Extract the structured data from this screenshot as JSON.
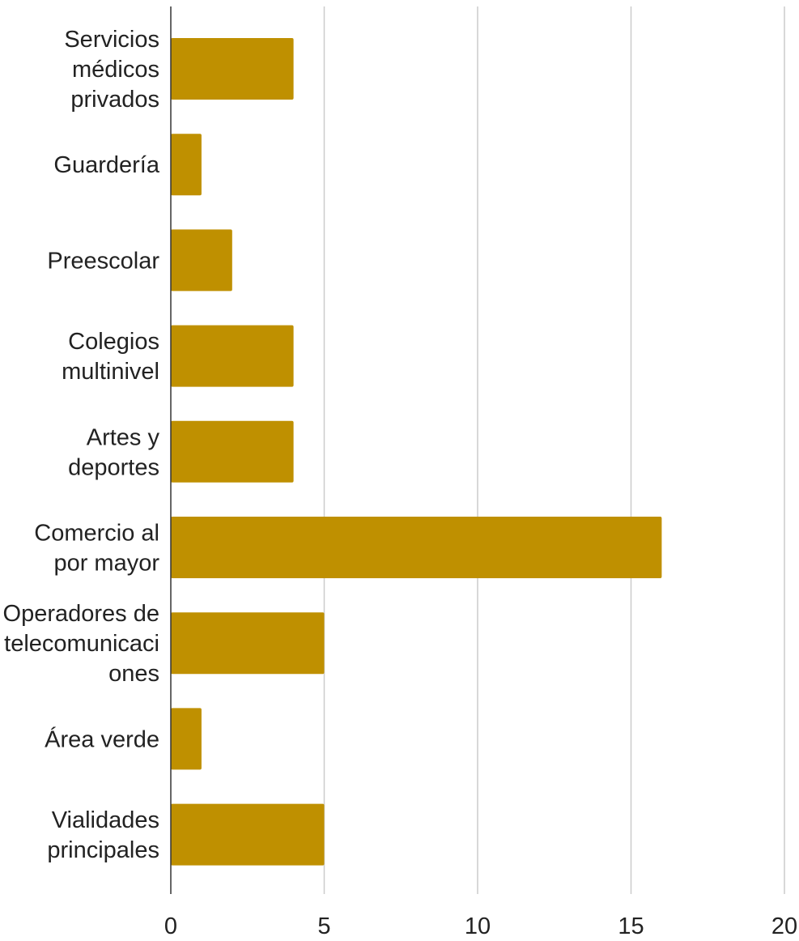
{
  "chart_data": {
    "type": "bar",
    "orientation": "horizontal",
    "categories": [
      [
        "Servicios",
        "médicos",
        "privados"
      ],
      [
        "Guardería"
      ],
      [
        "Preescolar"
      ],
      [
        "Colegios",
        "multinivel"
      ],
      [
        "Artes y",
        "deportes"
      ],
      [
        "Comercio al",
        "por mayor"
      ],
      [
        "Operadores de",
        "telecomunicaci",
        "ones"
      ],
      [
        "Área verde"
      ],
      [
        "Vialidades",
        "principales"
      ]
    ],
    "values": [
      4,
      1,
      2,
      4,
      4,
      16,
      5,
      1,
      5
    ],
    "xticks": [
      "0",
      "5",
      "10",
      "15",
      "20"
    ],
    "xlim": [
      0,
      20
    ],
    "grid": true,
    "bar_color": "#bf9000",
    "title": "",
    "xlabel": "",
    "ylabel": ""
  }
}
